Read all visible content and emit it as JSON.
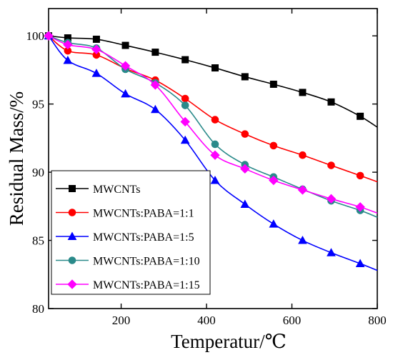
{
  "chart_data": {
    "type": "line",
    "xlabel": "Temperatur/℃",
    "ylabel": "Residual Mass/%",
    "xlim": [
      30,
      800
    ],
    "ylim": [
      80,
      102
    ],
    "xticks": [
      200,
      400,
      600,
      800
    ],
    "yticks": [
      80,
      85,
      90,
      95,
      100
    ],
    "xtick_labels": [
      "200",
      "400",
      "600",
      "800"
    ],
    "ytick_labels": [
      "80",
      "85",
      "90",
      "95",
      "100"
    ],
    "grid": false,
    "legend_position": "lower-left",
    "series": [
      {
        "name": "MWCNTs",
        "color": "#000000",
        "marker": "square",
        "x": [
          30,
          75,
          142,
          210,
          280,
          350,
          420,
          490,
          557,
          625,
          692,
          760,
          800
        ],
        "y": [
          100,
          99.85,
          99.75,
          99.3,
          98.8,
          98.25,
          97.65,
          97.0,
          96.45,
          95.85,
          95.15,
          94.1,
          93.3
        ],
        "marker_x": [
          30,
          75,
          142,
          210,
          280,
          350,
          420,
          490,
          557,
          625,
          692,
          760
        ]
      },
      {
        "name": "MWCNTs:PABA=1:1",
        "color": "#ff0000",
        "marker": "circle",
        "x": [
          30,
          75,
          142,
          210,
          280,
          350,
          420,
          490,
          557,
          625,
          692,
          760,
          800
        ],
        "y": [
          100,
          98.9,
          98.6,
          97.6,
          96.75,
          95.4,
          93.85,
          92.8,
          91.95,
          91.25,
          90.5,
          89.75,
          89.3
        ],
        "marker_x": [
          30,
          75,
          142,
          210,
          280,
          350,
          420,
          490,
          557,
          625,
          692,
          760
        ]
      },
      {
        "name": "MWCNTs:PABA=1:5",
        "color": "#0000ff",
        "marker": "triangle",
        "x": [
          30,
          75,
          142,
          210,
          280,
          350,
          420,
          490,
          557,
          625,
          692,
          760,
          800
        ],
        "y": [
          100,
          98.2,
          97.25,
          95.75,
          94.6,
          92.35,
          89.4,
          87.65,
          86.2,
          85.0,
          84.1,
          83.3,
          82.8
        ],
        "marker_x": [
          30,
          75,
          142,
          210,
          280,
          350,
          420,
          490,
          557,
          625,
          692,
          760
        ]
      },
      {
        "name": "MWCNTs:PABA=1:10",
        "color": "#2a8a8a",
        "marker": "circle",
        "x": [
          30,
          75,
          142,
          210,
          280,
          350,
          420,
          490,
          557,
          625,
          692,
          760,
          800
        ],
        "y": [
          100,
          99.5,
          99.1,
          97.55,
          96.55,
          94.9,
          92.05,
          90.55,
          89.65,
          88.75,
          87.9,
          87.2,
          86.7
        ],
        "marker_x": [
          30,
          75,
          142,
          210,
          280,
          350,
          420,
          490,
          557,
          625,
          692,
          760
        ]
      },
      {
        "name": "MWCNTs:PABA=1:15",
        "color": "#ff00ff",
        "marker": "diamond",
        "x": [
          30,
          75,
          142,
          210,
          280,
          350,
          420,
          490,
          557,
          625,
          692,
          760,
          800
        ],
        "y": [
          100,
          99.35,
          99.0,
          97.8,
          96.4,
          93.7,
          91.25,
          90.25,
          89.4,
          88.7,
          88.05,
          87.45,
          87.0
        ],
        "marker_x": [
          30,
          75,
          142,
          210,
          280,
          350,
          420,
          490,
          557,
          625,
          692,
          760
        ]
      }
    ]
  }
}
